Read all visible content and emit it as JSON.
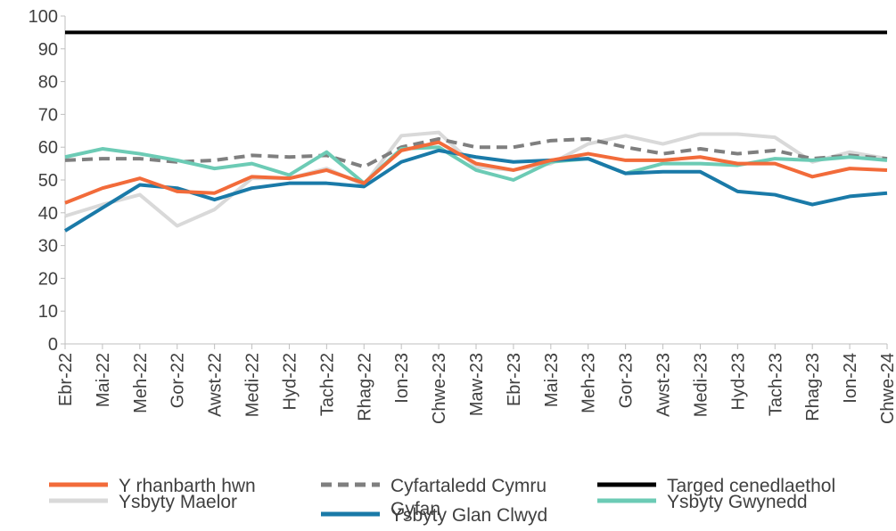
{
  "chart_data": {
    "type": "line",
    "categories": [
      "Ebr-22",
      "Mai-22",
      "Meh-22",
      "Gor-22",
      "Awst-22",
      "Medi-22",
      "Hyd-22",
      "Tach-22",
      "Rhag-22",
      "Ion-23",
      "Chwe-23",
      "Maw-23",
      "Ebr-23",
      "Mai-23",
      "Meh-23",
      "Gor-23",
      "Awst-23",
      "Medi-23",
      "Hyd-23",
      "Tach-23",
      "Rhag-23",
      "Ion-24",
      "Chwe-24"
    ],
    "series": [
      {
        "name": "Ysbyty Maelor",
        "color": "#d9d9d9",
        "values": [
          39,
          42.5,
          45.5,
          36,
          41,
          50.5,
          50.5,
          53.5,
          48.5,
          63.5,
          64.5,
          54,
          53,
          55,
          61,
          63.5,
          61,
          64,
          64,
          63,
          55.5,
          58.5,
          56.5
        ]
      },
      {
        "name": "Cyfartaledd Cymru Gyfan",
        "color": "#7f7f7f",
        "dashed": true,
        "values": [
          56,
          56.5,
          56.5,
          55.5,
          56,
          57.5,
          57,
          57.5,
          54,
          60,
          62.5,
          60,
          60,
          62,
          62.5,
          60,
          58,
          59.5,
          58,
          59,
          56.5,
          57.5,
          56.5
        ]
      },
      {
        "name": "Ysbyty Gwynedd",
        "color": "#6ccbb5",
        "values": [
          57,
          59.5,
          58,
          56,
          53.5,
          55,
          51.5,
          58.5,
          49,
          59.5,
          60,
          53,
          50,
          55.5,
          56.5,
          52,
          55,
          55,
          54.5,
          56.5,
          56,
          57,
          56
        ]
      },
      {
        "name": "Ysbyty Glan Clwyd",
        "color": "#1a7aa8",
        "values": [
          34.5,
          41.5,
          48.5,
          47.5,
          44,
          47.5,
          49,
          49,
          48,
          55.5,
          59,
          57,
          55.5,
          56,
          56.5,
          52,
          52.5,
          52.5,
          46.5,
          45.5,
          42.5,
          45,
          46
        ]
      },
      {
        "name": "Y rhanbarth hwn",
        "color": "#f26b3a",
        "values": [
          43,
          47.5,
          50.5,
          46.5,
          46,
          51,
          50.5,
          53,
          49,
          59,
          61.5,
          55,
          53,
          56,
          58,
          56,
          56,
          57,
          55,
          55,
          51,
          53.5,
          53
        ]
      },
      {
        "name": "Targed cenedlaethol",
        "color": "#000000",
        "values": [
          95,
          95,
          95,
          95,
          95,
          95,
          95,
          95,
          95,
          95,
          95,
          95,
          95,
          95,
          95,
          95,
          95,
          95,
          95,
          95,
          95,
          95,
          95
        ]
      }
    ],
    "ylim": [
      0,
      100
    ],
    "yticks": [
      0,
      10,
      20,
      30,
      40,
      50,
      60,
      70,
      80,
      90,
      100
    ],
    "grid": false
  }
}
